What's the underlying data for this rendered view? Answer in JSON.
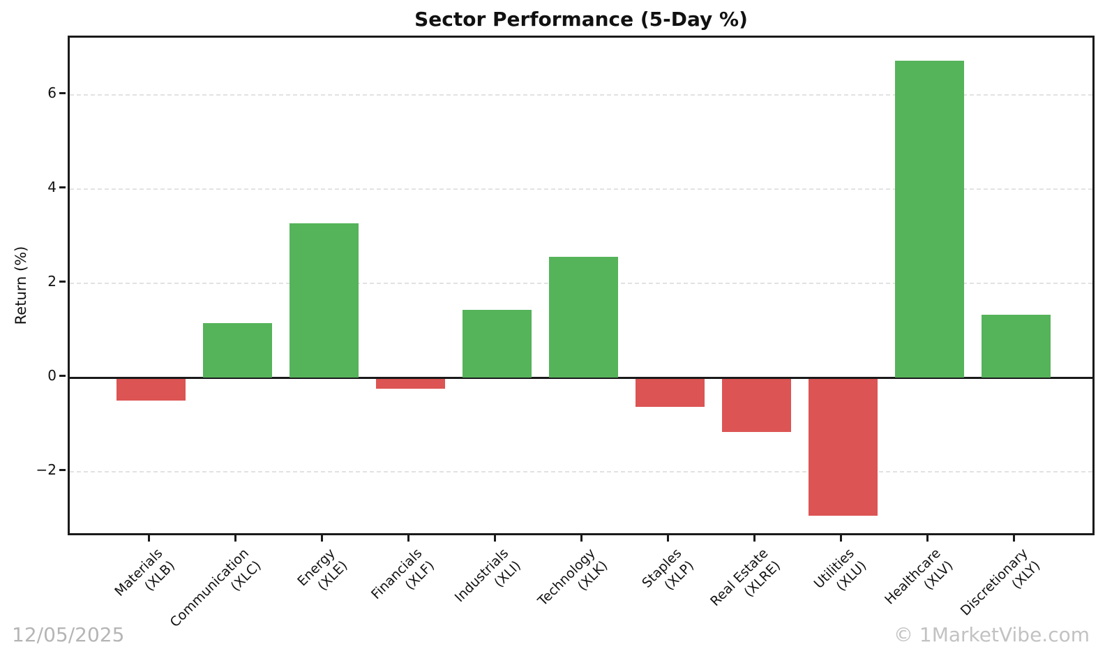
{
  "chart_data": {
    "type": "bar",
    "title": "Sector Performance (5-Day %)",
    "xlabel": "",
    "ylabel": "Return (%)",
    "categories": [
      {
        "name": "Materials",
        "ticker": "(XLB)"
      },
      {
        "name": "Communication",
        "ticker": "(XLC)"
      },
      {
        "name": "Energy",
        "ticker": "(XLE)"
      },
      {
        "name": "Financials",
        "ticker": "(XLF)"
      },
      {
        "name": "Industrials",
        "ticker": "(XLI)"
      },
      {
        "name": "Technology",
        "ticker": "(XLK)"
      },
      {
        "name": "Staples",
        "ticker": "(XLP)"
      },
      {
        "name": "Real Estate",
        "ticker": "(XLRE)"
      },
      {
        "name": "Utilities",
        "ticker": "(XLU)"
      },
      {
        "name": "Healthcare",
        "ticker": "(XLV)"
      },
      {
        "name": "Discretionary",
        "ticker": "(XLY)"
      }
    ],
    "values": [
      -0.46,
      1.15,
      3.28,
      -0.21,
      1.44,
      2.56,
      -0.59,
      -1.12,
      -2.91,
      6.72,
      1.34
    ],
    "yticks": [
      6,
      4,
      2,
      0,
      -2
    ],
    "ytick_labels": [
      "6",
      "4",
      "2",
      "0",
      "−2"
    ],
    "ylim": [
      -3.4,
      7.2
    ],
    "grid": "horizontal-dashed",
    "legend": "none",
    "positive_color": "#55b35a",
    "negative_color": "#dc5454"
  },
  "footer": {
    "date": "12/05/2025",
    "watermark": "© 1MarketVibe.com"
  }
}
